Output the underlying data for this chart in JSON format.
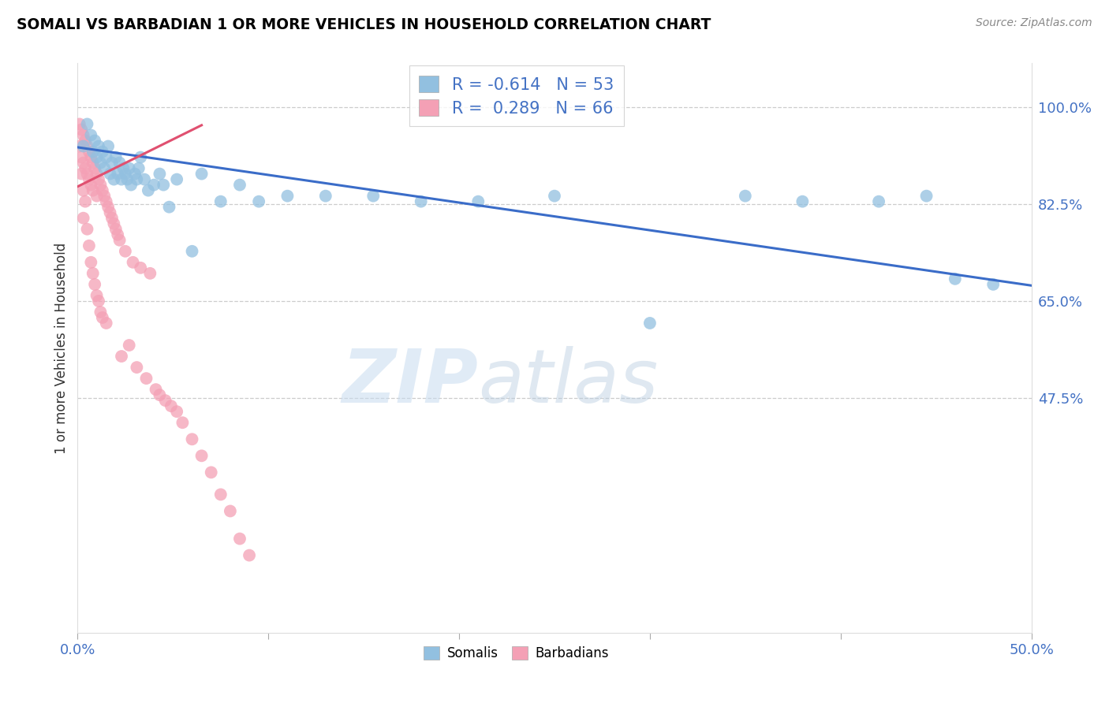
{
  "title": "SOMALI VS BARBADIAN 1 OR MORE VEHICLES IN HOUSEHOLD CORRELATION CHART",
  "source": "Source: ZipAtlas.com",
  "ylabel": "1 or more Vehicles in Household",
  "ytick_labels": [
    "100.0%",
    "82.5%",
    "65.0%",
    "47.5%"
  ],
  "ytick_values": [
    1.0,
    0.825,
    0.65,
    0.475
  ],
  "xlim": [
    0.0,
    0.5
  ],
  "ylim": [
    0.05,
    1.08
  ],
  "legend_somali_R": "-0.614",
  "legend_somali_N": "53",
  "legend_barbadian_R": "0.289",
  "legend_barbadian_N": "66",
  "somali_color": "#92C0E0",
  "barbadian_color": "#F4A0B5",
  "somali_line_color": "#3A6CC8",
  "barbadian_line_color": "#E05070",
  "watermark_zip": "ZIP",
  "watermark_atlas": "atlas",
  "somali_scatter_x": [
    0.003,
    0.005,
    0.007,
    0.008,
    0.009,
    0.01,
    0.011,
    0.012,
    0.013,
    0.014,
    0.015,
    0.016,
    0.017,
    0.018,
    0.019,
    0.02,
    0.021,
    0.022,
    0.023,
    0.024,
    0.025,
    0.026,
    0.027,
    0.028,
    0.03,
    0.031,
    0.032,
    0.033,
    0.035,
    0.037,
    0.04,
    0.043,
    0.045,
    0.048,
    0.052,
    0.06,
    0.065,
    0.075,
    0.085,
    0.095,
    0.11,
    0.13,
    0.155,
    0.18,
    0.21,
    0.25,
    0.3,
    0.35,
    0.38,
    0.42,
    0.445,
    0.46,
    0.48
  ],
  "somali_scatter_y": [
    0.93,
    0.97,
    0.95,
    0.92,
    0.94,
    0.91,
    0.93,
    0.9,
    0.92,
    0.89,
    0.91,
    0.93,
    0.88,
    0.9,
    0.87,
    0.91,
    0.88,
    0.9,
    0.87,
    0.89,
    0.88,
    0.87,
    0.89,
    0.86,
    0.88,
    0.87,
    0.89,
    0.91,
    0.87,
    0.85,
    0.86,
    0.88,
    0.86,
    0.82,
    0.87,
    0.74,
    0.88,
    0.83,
    0.86,
    0.83,
    0.84,
    0.84,
    0.84,
    0.83,
    0.83,
    0.84,
    0.61,
    0.84,
    0.83,
    0.83,
    0.84,
    0.69,
    0.68
  ],
  "barbadian_scatter_x": [
    0.001,
    0.001,
    0.002,
    0.002,
    0.002,
    0.003,
    0.003,
    0.003,
    0.003,
    0.004,
    0.004,
    0.004,
    0.005,
    0.005,
    0.005,
    0.006,
    0.006,
    0.006,
    0.007,
    0.007,
    0.007,
    0.008,
    0.008,
    0.008,
    0.009,
    0.009,
    0.01,
    0.01,
    0.01,
    0.011,
    0.011,
    0.012,
    0.012,
    0.013,
    0.013,
    0.014,
    0.015,
    0.015,
    0.016,
    0.017,
    0.018,
    0.019,
    0.02,
    0.021,
    0.022,
    0.023,
    0.025,
    0.027,
    0.029,
    0.031,
    0.033,
    0.036,
    0.038,
    0.041,
    0.043,
    0.046,
    0.049,
    0.052,
    0.055,
    0.06,
    0.065,
    0.07,
    0.075,
    0.08,
    0.085,
    0.09
  ],
  "barbadian_scatter_y": [
    0.97,
    0.93,
    0.96,
    0.91,
    0.88,
    0.95,
    0.9,
    0.85,
    0.8,
    0.94,
    0.89,
    0.83,
    0.93,
    0.88,
    0.78,
    0.92,
    0.87,
    0.75,
    0.91,
    0.86,
    0.72,
    0.9,
    0.85,
    0.7,
    0.89,
    0.68,
    0.88,
    0.84,
    0.66,
    0.87,
    0.65,
    0.86,
    0.63,
    0.85,
    0.62,
    0.84,
    0.83,
    0.61,
    0.82,
    0.81,
    0.8,
    0.79,
    0.78,
    0.77,
    0.76,
    0.55,
    0.74,
    0.57,
    0.72,
    0.53,
    0.71,
    0.51,
    0.7,
    0.49,
    0.48,
    0.47,
    0.46,
    0.45,
    0.43,
    0.4,
    0.37,
    0.34,
    0.3,
    0.27,
    0.22,
    0.19
  ],
  "somali_trendline_x": [
    0.0,
    0.5
  ],
  "somali_trendline_y": [
    0.928,
    0.678
  ],
  "barbadian_trendline_x": [
    0.0,
    0.065
  ],
  "barbadian_trendline_y": [
    0.857,
    0.968
  ]
}
